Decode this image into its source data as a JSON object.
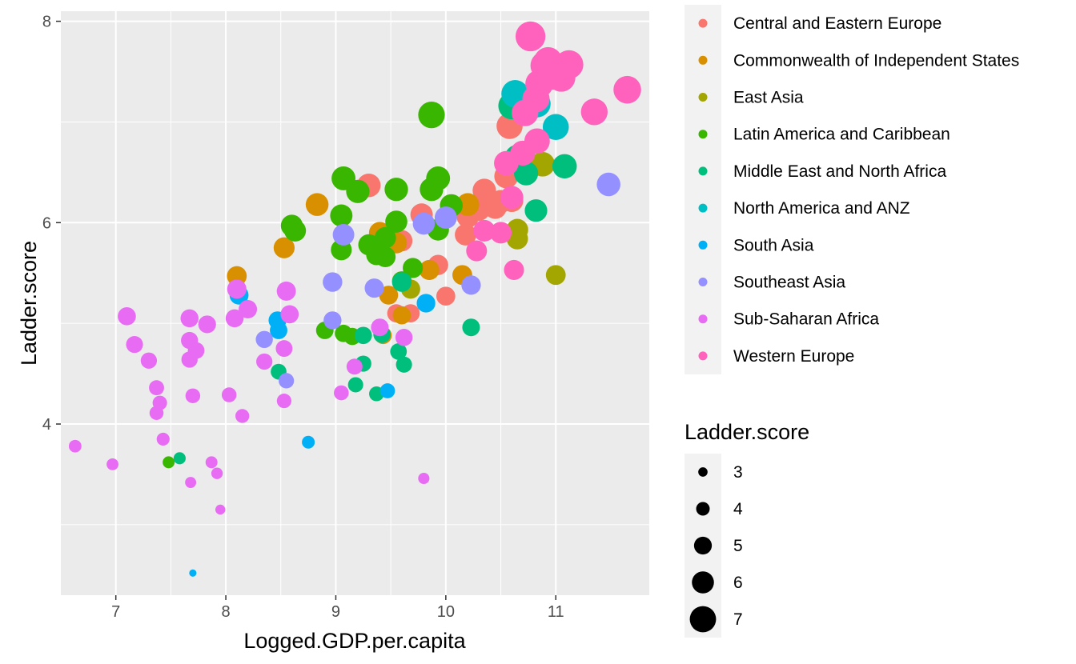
{
  "chart_data": {
    "type": "scatter",
    "xlabel": "Logged.GDP.per.capita",
    "ylabel": "Ladder.score",
    "xlim": [
      6.5,
      11.85
    ],
    "ylim": [
      2.3,
      8.1
    ],
    "x_ticks": [
      7,
      8,
      9,
      10,
      11
    ],
    "y_ticks": [
      4,
      6,
      8
    ],
    "grid": true,
    "color_legend": {
      "placement": "right",
      "entries": [
        {
          "name": "Central and Eastern Europe",
          "color": "#F8766D"
        },
        {
          "name": "Commonwealth of Independent States",
          "color": "#D89000"
        },
        {
          "name": "East Asia",
          "color": "#A3A500"
        },
        {
          "name": "Latin America and Caribbean",
          "color": "#39B600"
        },
        {
          "name": "Middle East and North Africa",
          "color": "#00BF7D"
        },
        {
          "name": "North America and ANZ",
          "color": "#00BFC4"
        },
        {
          "name": "South Asia",
          "color": "#00B0F6"
        },
        {
          "name": "Southeast Asia",
          "color": "#9590FF"
        },
        {
          "name": "Sub-Saharan Africa",
          "color": "#E76BF3"
        },
        {
          "name": "Western Europe",
          "color": "#FF62BC"
        }
      ]
    },
    "size_legend": {
      "title": "Ladder.score",
      "placement": "right",
      "values": [
        3,
        4,
        5,
        6,
        7
      ]
    },
    "series": [
      {
        "name": "Central and Eastern Europe",
        "color": "#F8766D",
        "points": [
          [
            9.3,
            6.37
          ],
          [
            9.78,
            6.08
          ],
          [
            9.93,
            5.58
          ],
          [
            10.0,
            5.27
          ],
          [
            10.18,
            5.88
          ],
          [
            10.2,
            6.06
          ],
          [
            10.3,
            6.13
          ],
          [
            10.35,
            6.32
          ],
          [
            10.4,
            6.18
          ],
          [
            10.45,
            6.15
          ],
          [
            10.5,
            6.21
          ],
          [
            10.55,
            6.46
          ],
          [
            10.58,
            6.96
          ],
          [
            10.6,
            6.22
          ],
          [
            9.55,
            5.1
          ],
          [
            9.6,
            5.82
          ],
          [
            9.68,
            5.1
          ]
        ]
      },
      {
        "name": "Commonwealth of Independent States",
        "color": "#D89000",
        "points": [
          [
            8.1,
            5.47
          ],
          [
            8.53,
            5.75
          ],
          [
            8.83,
            6.18
          ],
          [
            9.4,
            5.9
          ],
          [
            9.43,
            4.88
          ],
          [
            9.48,
            5.28
          ],
          [
            9.55,
            5.8
          ],
          [
            9.6,
            5.08
          ],
          [
            9.85,
            5.53
          ],
          [
            10.15,
            5.48
          ],
          [
            10.2,
            6.18
          ],
          [
            9.42,
            5.7
          ]
        ]
      },
      {
        "name": "East Asia",
        "color": "#A3A500",
        "points": [
          [
            9.68,
            5.34
          ],
          [
            10.65,
            5.93
          ],
          [
            10.65,
            5.84
          ],
          [
            10.88,
            6.58
          ],
          [
            11.0,
            5.48
          ]
        ]
      },
      {
        "name": "Latin America and Caribbean",
        "color": "#39B600",
        "points": [
          [
            7.48,
            3.62
          ],
          [
            8.6,
            5.97
          ],
          [
            8.63,
            5.92
          ],
          [
            8.9,
            4.93
          ],
          [
            9.05,
            6.07
          ],
          [
            9.05,
            5.73
          ],
          [
            9.07,
            4.9
          ],
          [
            9.07,
            6.44
          ],
          [
            9.2,
            6.31
          ],
          [
            9.3,
            5.78
          ],
          [
            9.37,
            5.68
          ],
          [
            9.45,
            5.85
          ],
          [
            9.45,
            5.66
          ],
          [
            9.55,
            6.33
          ],
          [
            9.55,
            6.01
          ],
          [
            9.6,
            5.42
          ],
          [
            9.7,
            5.55
          ],
          [
            9.87,
            6.33
          ],
          [
            9.87,
            7.07
          ],
          [
            9.93,
            6.44
          ],
          [
            9.93,
            5.93
          ],
          [
            10.05,
            6.17
          ],
          [
            9.15,
            4.87
          ]
        ]
      },
      {
        "name": "Middle East and North Africa",
        "color": "#00BF7D",
        "points": [
          [
            7.58,
            3.66
          ],
          [
            8.48,
            4.52
          ],
          [
            9.18,
            4.39
          ],
          [
            9.25,
            4.6
          ],
          [
            9.37,
            4.3
          ],
          [
            9.57,
            4.72
          ],
          [
            9.62,
            4.59
          ],
          [
            9.42,
            4.89
          ],
          [
            9.6,
            5.41
          ],
          [
            10.23,
            4.96
          ],
          [
            10.6,
            7.16
          ],
          [
            10.65,
            6.65
          ],
          [
            10.73,
            6.49
          ],
          [
            10.82,
            6.12
          ],
          [
            11.08,
            6.56
          ],
          [
            9.25,
            4.88
          ]
        ]
      },
      {
        "name": "North America and ANZ",
        "color": "#00BFC4",
        "points": [
          [
            10.63,
            7.28
          ],
          [
            10.75,
            7.14
          ],
          [
            10.83,
            7.18
          ],
          [
            11.0,
            6.95
          ]
        ]
      },
      {
        "name": "South Asia",
        "color": "#00B0F6",
        "points": [
          [
            7.7,
            2.52
          ],
          [
            8.12,
            5.28
          ],
          [
            8.47,
            5.03
          ],
          [
            8.48,
            4.93
          ],
          [
            8.75,
            3.82
          ],
          [
            9.47,
            4.33
          ],
          [
            9.82,
            5.2
          ]
        ]
      },
      {
        "name": "Southeast Asia",
        "color": "#9590FF",
        "points": [
          [
            8.35,
            4.84
          ],
          [
            8.55,
            4.43
          ],
          [
            8.97,
            5.41
          ],
          [
            8.97,
            5.03
          ],
          [
            9.07,
            5.88
          ],
          [
            9.35,
            5.35
          ],
          [
            9.8,
            5.99
          ],
          [
            10.0,
            6.05
          ],
          [
            10.23,
            5.38
          ],
          [
            11.48,
            6.38
          ]
        ]
      },
      {
        "name": "Sub-Saharan Africa",
        "color": "#E76BF3",
        "points": [
          [
            6.63,
            3.78
          ],
          [
            6.97,
            3.6
          ],
          [
            7.1,
            5.07
          ],
          [
            7.17,
            4.79
          ],
          [
            7.3,
            4.63
          ],
          [
            7.37,
            4.36
          ],
          [
            7.37,
            4.11
          ],
          [
            7.4,
            4.21
          ],
          [
            7.43,
            3.85
          ],
          [
            7.67,
            5.05
          ],
          [
            7.67,
            4.83
          ],
          [
            7.67,
            4.64
          ],
          [
            7.68,
            3.42
          ],
          [
            7.7,
            4.28
          ],
          [
            7.73,
            4.73
          ],
          [
            7.83,
            4.99
          ],
          [
            7.87,
            3.62
          ],
          [
            7.92,
            3.51
          ],
          [
            7.95,
            3.15
          ],
          [
            8.03,
            4.29
          ],
          [
            8.08,
            5.05
          ],
          [
            8.1,
            5.34
          ],
          [
            8.15,
            4.08
          ],
          [
            8.2,
            5.14
          ],
          [
            8.35,
            4.62
          ],
          [
            8.53,
            4.75
          ],
          [
            8.53,
            4.23
          ],
          [
            8.55,
            5.32
          ],
          [
            8.58,
            5.09
          ],
          [
            9.05,
            4.31
          ],
          [
            9.17,
            4.57
          ],
          [
            9.4,
            4.96
          ],
          [
            9.62,
            4.86
          ],
          [
            9.8,
            3.46
          ]
        ]
      },
      {
        "name": "Western Europe",
        "color": "#FF62BC",
        "points": [
          [
            10.35,
            5.92
          ],
          [
            10.55,
            6.59
          ],
          [
            10.6,
            6.25
          ],
          [
            10.62,
            5.53
          ],
          [
            10.7,
            6.69
          ],
          [
            10.72,
            7.09
          ],
          [
            10.77,
            7.85
          ],
          [
            10.82,
            7.23
          ],
          [
            10.83,
            6.81
          ],
          [
            10.85,
            7.38
          ],
          [
            10.9,
            7.56
          ],
          [
            10.93,
            7.6
          ],
          [
            10.98,
            7.46
          ],
          [
            11.05,
            7.44
          ],
          [
            11.12,
            7.57
          ],
          [
            11.35,
            7.1
          ],
          [
            11.65,
            7.32
          ],
          [
            10.5,
            5.9
          ],
          [
            10.28,
            5.72
          ]
        ]
      }
    ]
  }
}
